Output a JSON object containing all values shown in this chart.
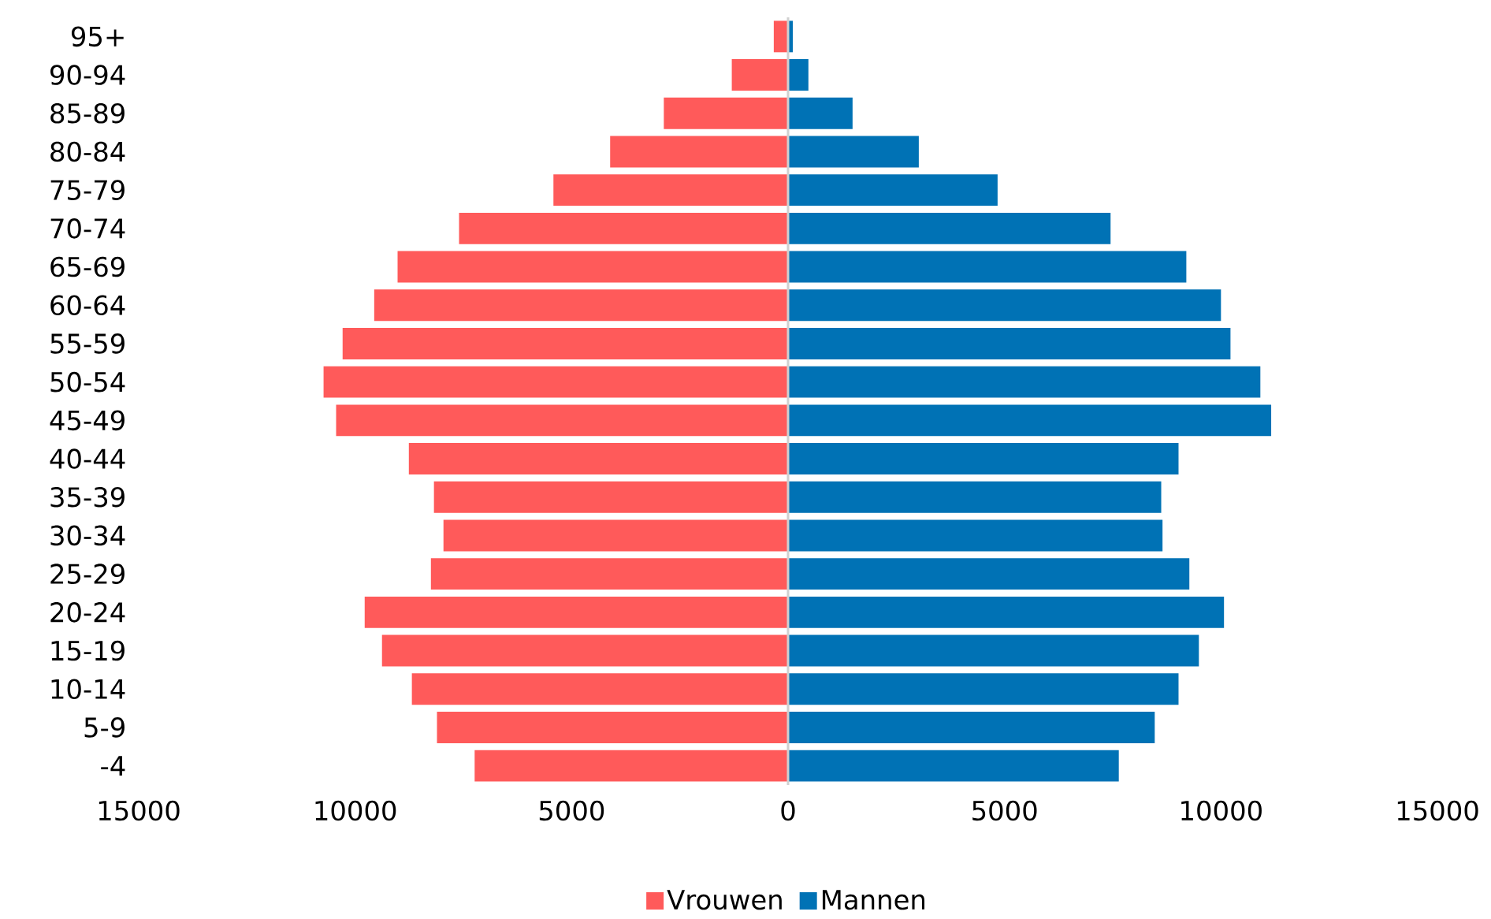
{
  "chart_data": {
    "type": "bar",
    "orientation": "horizontal",
    "categories": [
      "95+",
      "90-94",
      "85-89",
      "80-84",
      "75-79",
      "70-74",
      "65-69",
      "60-64",
      "55-59",
      "50-54",
      "45-49",
      "40-44",
      "35-39",
      "30-34",
      "25-29",
      "20-24",
      "15-19",
      "10-14",
      "5-9",
      "-4"
    ],
    "series": [
      {
        "name": "Vrouwen",
        "color": "#ff5a5a",
        "values": [
          -330,
          -1300,
          -2870,
          -4110,
          -5420,
          -7600,
          -9020,
          -9560,
          -10290,
          -10730,
          -10440,
          -8760,
          -8180,
          -7960,
          -8250,
          -9780,
          -9380,
          -8690,
          -8110,
          -7240
        ]
      },
      {
        "name": "Mannen",
        "color": "#0072b5",
        "values": [
          110,
          470,
          1490,
          3020,
          4840,
          7450,
          9200,
          10000,
          10220,
          10910,
          11160,
          9020,
          8620,
          8650,
          9270,
          10070,
          9490,
          9020,
          8470,
          7640
        ]
      }
    ],
    "xlim": [
      -15000,
      15000
    ],
    "xticks": [
      {
        "value": -15000,
        "label": "15000"
      },
      {
        "value": -10000,
        "label": "10000"
      },
      {
        "value": -5000,
        "label": "5000"
      },
      0,
      5000,
      10000,
      15000
    ],
    "ref_lines": [
      {
        "axis": "x",
        "value": 0,
        "color": "#d0d0d0"
      }
    ],
    "grid": false,
    "legend": "bottom",
    "stacked": true
  }
}
